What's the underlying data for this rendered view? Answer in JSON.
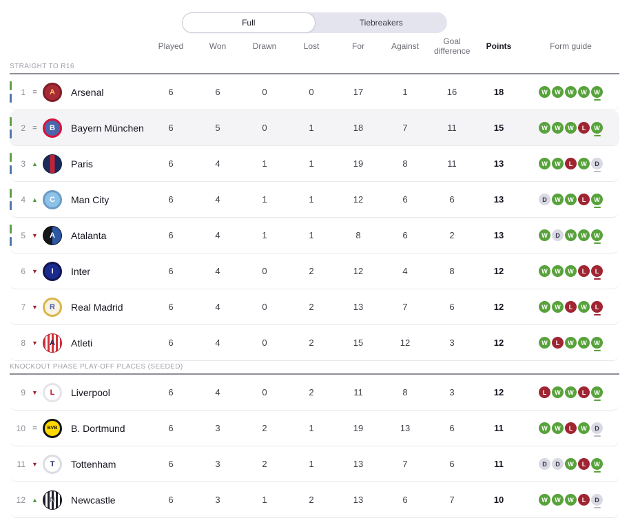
{
  "toggle": {
    "full_label": "Full",
    "tiebreakers_label": "Tiebreakers"
  },
  "columns": [
    {
      "label": "Played"
    },
    {
      "label": "Won"
    },
    {
      "label": "Drawn"
    },
    {
      "label": "Lost"
    },
    {
      "label": "For"
    },
    {
      "label": "Against"
    },
    {
      "label": "Goal difference"
    },
    {
      "label": "Points"
    },
    {
      "label": "Form guide"
    }
  ],
  "colors": {
    "win": "#58a23c",
    "loss": "#a02533",
    "draw": "#d9d9e3",
    "movement_up": "#4d9b3f",
    "movement_down": "#a02533",
    "movement_same": "#9a9aa2",
    "bar_green": "#5f9e4a",
    "bar_blue": "#4e78a8",
    "row_highlight": "#f4f4f7",
    "toggle_bg": "#e4e4ee"
  },
  "sections": [
    {
      "label": "STRAIGHT TO R16",
      "rows": [
        {
          "pos": "1",
          "movement": "same",
          "team": "Arsenal",
          "qualification_bars": true,
          "highlighted": false,
          "badge": {
            "pattern": "ring",
            "colors": [
              "#a82a36"
            ],
            "border": "#7e1f29",
            "label": "A",
            "label_color": "#f0c75e"
          },
          "stats": [
            "6",
            "6",
            "0",
            "0",
            "17",
            "1",
            "16",
            "18"
          ],
          "form": [
            "W",
            "W",
            "W",
            "W",
            "W"
          ]
        },
        {
          "pos": "2",
          "movement": "same",
          "team": "Bayern München",
          "qualification_bars": true,
          "highlighted": true,
          "badge": {
            "pattern": "ring",
            "colors": [
              "#4a67ad"
            ],
            "border": "#d6133b",
            "label": "B",
            "label_color": "#ffffff"
          },
          "stats": [
            "6",
            "5",
            "0",
            "1",
            "18",
            "7",
            "11",
            "15"
          ],
          "form": [
            "W",
            "W",
            "W",
            "L",
            "W"
          ]
        },
        {
          "pos": "3",
          "movement": "up",
          "team": "Paris",
          "qualification_bars": true,
          "highlighted": false,
          "badge": {
            "pattern": "centerstripe",
            "colors": [
              "#1c2a57",
              "#c0233b"
            ],
            "border": "#13203f",
            "label": "",
            "label_color": "#ffffff"
          },
          "stats": [
            "6",
            "4",
            "1",
            "1",
            "19",
            "8",
            "11",
            "13"
          ],
          "form": [
            "W",
            "W",
            "L",
            "W",
            "D"
          ]
        },
        {
          "pos": "4",
          "movement": "up",
          "team": "Man City",
          "qualification_bars": true,
          "highlighted": false,
          "badge": {
            "pattern": "ring",
            "colors": [
              "#8cc2e8"
            ],
            "border": "#6a9cc4",
            "label": "C",
            "label_color": "#ffffff"
          },
          "stats": [
            "6",
            "4",
            "1",
            "1",
            "12",
            "6",
            "6",
            "13"
          ],
          "form": [
            "D",
            "W",
            "W",
            "L",
            "W"
          ]
        },
        {
          "pos": "5",
          "movement": "down",
          "team": "Atalanta",
          "qualification_bars": true,
          "highlighted": false,
          "badge": {
            "pattern": "split",
            "colors": [
              "#16161e",
              "#2b57a5"
            ],
            "border": "#101018",
            "label": "A",
            "label_color": "#ffffff"
          },
          "stats": [
            "6",
            "4",
            "1",
            "1",
            "8",
            "6",
            "2",
            "13"
          ],
          "form": [
            "W",
            "D",
            "W",
            "W",
            "W"
          ]
        },
        {
          "pos": "6",
          "movement": "down",
          "team": "Inter",
          "qualification_bars": false,
          "highlighted": false,
          "badge": {
            "pattern": "ring",
            "colors": [
              "#1b2a8f"
            ],
            "border": "#0f1650",
            "label": "I",
            "label_color": "#ffffff"
          },
          "stats": [
            "6",
            "4",
            "0",
            "2",
            "12",
            "4",
            "8",
            "12"
          ],
          "form": [
            "W",
            "W",
            "W",
            "L",
            "L"
          ]
        },
        {
          "pos": "7",
          "movement": "down",
          "team": "Real Madrid",
          "qualification_bars": false,
          "highlighted": false,
          "badge": {
            "pattern": "ring",
            "colors": [
              "#f7f2e3"
            ],
            "border": "#d9b64a",
            "label": "R",
            "label_color": "#4a5ba6"
          },
          "stats": [
            "6",
            "4",
            "0",
            "2",
            "13",
            "7",
            "6",
            "12"
          ],
          "form": [
            "W",
            "W",
            "L",
            "W",
            "L"
          ]
        },
        {
          "pos": "8",
          "movement": "down",
          "team": "Atleti",
          "qualification_bars": false,
          "highlighted": false,
          "badge": {
            "pattern": "stripes",
            "colors": [
              "#d2303a",
              "#ffffff"
            ],
            "border": "#b02530",
            "label": "A",
            "label_color": "#1c2a57"
          },
          "stats": [
            "6",
            "4",
            "0",
            "2",
            "15",
            "12",
            "3",
            "12"
          ],
          "form": [
            "W",
            "L",
            "W",
            "W",
            "W"
          ]
        }
      ]
    },
    {
      "label": "KNOCKOUT PHASE PLAY-OFF PLACES (SEEDED)",
      "rows": [
        {
          "pos": "9",
          "movement": "down",
          "team": "Liverpool",
          "qualification_bars": false,
          "highlighted": false,
          "badge": {
            "pattern": "ring",
            "colors": [
              "#ffffff"
            ],
            "border": "#e4e4ea",
            "label": "L",
            "label_color": "#c8102e"
          },
          "stats": [
            "6",
            "4",
            "0",
            "2",
            "11",
            "8",
            "3",
            "12"
          ],
          "form": [
            "L",
            "W",
            "W",
            "L",
            "W"
          ]
        },
        {
          "pos": "10",
          "movement": "same",
          "team": "B. Dortmund",
          "qualification_bars": false,
          "highlighted": false,
          "badge": {
            "pattern": "ring",
            "colors": [
              "#ffd900"
            ],
            "border": "#141414",
            "label": "BVB",
            "label_color": "#141414"
          },
          "stats": [
            "6",
            "3",
            "2",
            "1",
            "19",
            "13",
            "6",
            "11"
          ],
          "form": [
            "W",
            "W",
            "L",
            "W",
            "D"
          ]
        },
        {
          "pos": "11",
          "movement": "down",
          "team": "Tottenham",
          "qualification_bars": false,
          "highlighted": false,
          "badge": {
            "pattern": "ring",
            "colors": [
              "#ffffff"
            ],
            "border": "#dcdce4",
            "label": "T",
            "label_color": "#16205c"
          },
          "stats": [
            "6",
            "3",
            "2",
            "1",
            "13",
            "7",
            "6",
            "11"
          ],
          "form": [
            "D",
            "D",
            "W",
            "L",
            "W"
          ]
        },
        {
          "pos": "12",
          "movement": "up",
          "team": "Newcastle",
          "qualification_bars": false,
          "highlighted": false,
          "badge": {
            "pattern": "stripes",
            "colors": [
              "#20202a",
              "#ffffff"
            ],
            "border": "#16161e",
            "label": "N",
            "label_color": "#8a8a94"
          },
          "stats": [
            "6",
            "3",
            "1",
            "2",
            "13",
            "6",
            "7",
            "10"
          ],
          "form": [
            "W",
            "W",
            "W",
            "L",
            "D"
          ]
        }
      ]
    }
  ]
}
